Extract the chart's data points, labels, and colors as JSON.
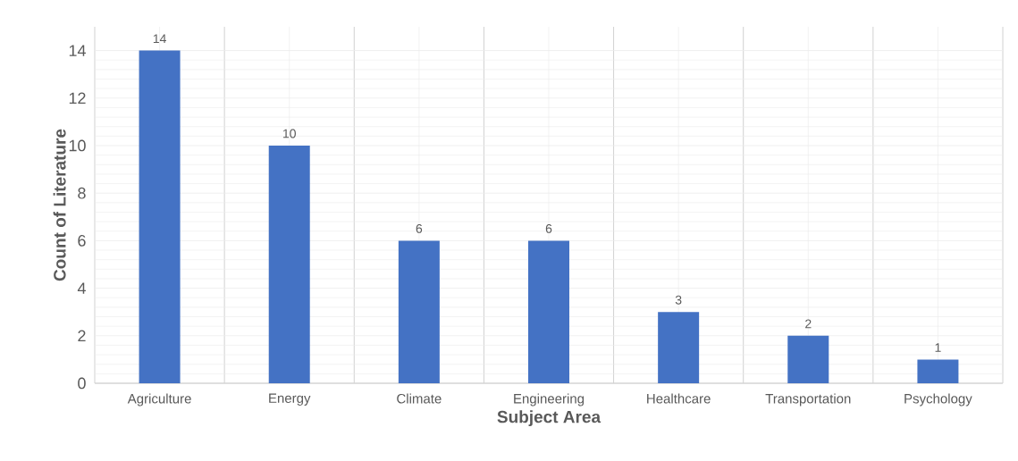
{
  "chart_data": {
    "type": "bar",
    "xlabel": "Subject Area",
    "ylabel": "Count of Literature",
    "categories": [
      "Agriculture",
      "Energy",
      "Climate",
      "Engineering",
      "Healthcare",
      "Transportation",
      "Psychology"
    ],
    "values": [
      14,
      10,
      6,
      6,
      3,
      2,
      1
    ],
    "value_labels": [
      "14",
      "10",
      "6",
      "6",
      "3",
      "2",
      "1"
    ],
    "color": "#4472c4",
    "ylim": [
      0,
      15
    ],
    "yticks": [
      0,
      2,
      4,
      6,
      8,
      10,
      12,
      14
    ],
    "grid": true
  }
}
